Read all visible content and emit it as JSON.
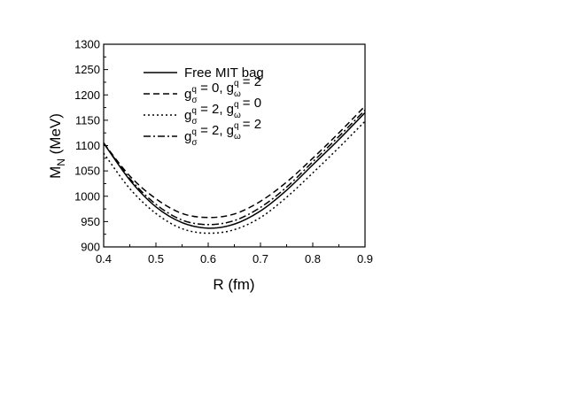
{
  "chart_data": {
    "type": "line",
    "xlabel": "R (fm)",
    "ylabel": {
      "base": "M",
      "sub": "N",
      "rest": " (MeV)"
    },
    "xlim": [
      0.4,
      0.9
    ],
    "ylim": [
      900,
      1300
    ],
    "x_ticks": [
      "0.4",
      "0.5",
      "0.6",
      "0.7",
      "0.8",
      "0.9"
    ],
    "y_ticks": [
      "900",
      "950",
      "1000",
      "1050",
      "1100",
      "1150",
      "1200",
      "1250",
      "1300"
    ],
    "grid": false,
    "legend_position": "top-center",
    "x": [
      0.4,
      0.45,
      0.5,
      0.55,
      0.6,
      0.65,
      0.7,
      0.75,
      0.8,
      0.85,
      0.9
    ],
    "series": [
      {
        "name": "Free MIT bag",
        "style": "solid",
        "legend_parts": [
          {
            "t": "Free MIT bag"
          }
        ],
        "values": [
          1105,
          1032,
          979,
          948,
          937,
          945,
          971,
          1012,
          1062,
          1112,
          1165
        ]
      },
      {
        "name": "g_σ^q = 0, g_ω^q = 2",
        "style": "dashed",
        "legend_parts": [
          {
            "t": "g"
          },
          {
            "sub": "σ",
            "sup": "q"
          },
          {
            "t": " = 0, g"
          },
          {
            "sub": "ω",
            "sup": "q"
          },
          {
            "t": " = 2"
          }
        ],
        "values": [
          1105,
          1040,
          995,
          966,
          958,
          965,
          990,
          1028,
          1075,
          1125,
          1178
        ]
      },
      {
        "name": "g_σ^q = 2, g_ω^q = 0",
        "style": "dotted",
        "legend_parts": [
          {
            "t": "g"
          },
          {
            "sub": "σ",
            "sup": "q"
          },
          {
            "t": " = 2, g"
          },
          {
            "sub": "ω",
            "sup": "q"
          },
          {
            "t": " = 0"
          }
        ],
        "values": [
          1085,
          1015,
          966,
          936,
          927,
          934,
          958,
          998,
          1046,
          1096,
          1148
        ]
      },
      {
        "name": "g_σ^q = 2, g_ω^q = 2",
        "style": "dashdot",
        "legend_parts": [
          {
            "t": "g"
          },
          {
            "sub": "σ",
            "sup": "q"
          },
          {
            "t": " = 2, g"
          },
          {
            "sub": "ω",
            "sup": "q"
          },
          {
            "t": " = 2"
          }
        ],
        "values": [
          1105,
          1035,
          984,
          953,
          944,
          952,
          978,
          1018,
          1068,
          1118,
          1170
        ]
      }
    ]
  }
}
